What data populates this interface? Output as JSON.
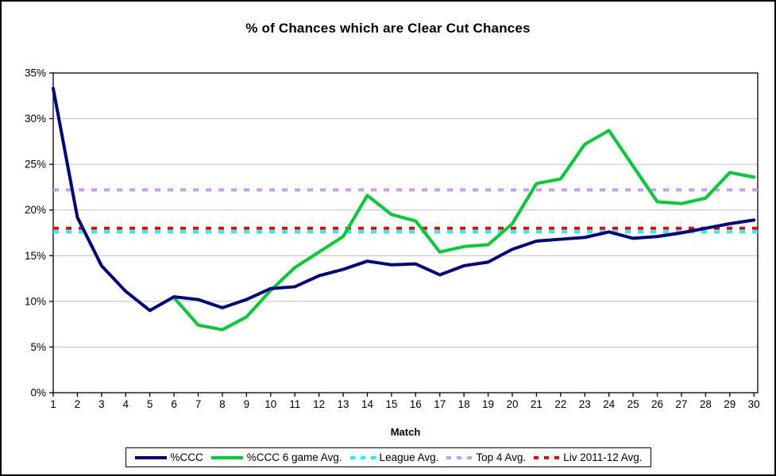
{
  "chart_data": {
    "type": "line",
    "title": "% of Chances which are Clear Cut Chances",
    "xlabel": "Match",
    "ylabel": "",
    "ylim": [
      0,
      35
    ],
    "grid": true,
    "legend_position": "bottom",
    "background_color": "#FFFFFF",
    "grid_color": "#C0C0C0",
    "axis_color": "#000000",
    "y_ticks": [
      "0%",
      "5%",
      "10%",
      "15%",
      "20%",
      "25%",
      "30%",
      "35%"
    ],
    "y_tick_values": [
      0,
      5,
      10,
      15,
      20,
      25,
      30,
      35
    ],
    "x_ticks": [
      "1",
      "2",
      "3",
      "4",
      "5",
      "6",
      "7",
      "8",
      "9",
      "10",
      "11",
      "12",
      "13",
      "14",
      "15",
      "16",
      "17",
      "18",
      "19",
      "20",
      "21",
      "22",
      "23",
      "24",
      "25",
      "26",
      "27",
      "28",
      "29",
      "30"
    ],
    "x": [
      1,
      2,
      3,
      4,
      5,
      6,
      7,
      8,
      9,
      10,
      11,
      12,
      13,
      14,
      15,
      16,
      17,
      18,
      19,
      20,
      21,
      22,
      23,
      24,
      25,
      26,
      27,
      28,
      29,
      30
    ],
    "series": [
      {
        "name": "%CCC",
        "color": "#000080",
        "style": "solid",
        "values": [
          33.3,
          19.2,
          13.9,
          11.1,
          9.0,
          10.5,
          10.2,
          9.3,
          10.2,
          11.4,
          11.6,
          12.8,
          13.5,
          14.4,
          14.0,
          14.1,
          12.9,
          13.9,
          14.3,
          15.7,
          16.6,
          16.8,
          17.0,
          17.6,
          16.9,
          17.1,
          17.5,
          18.0,
          18.5,
          18.9
        ]
      },
      {
        "name": "%CCC 6 game Avg.",
        "color": "#00CC33",
        "style": "solid",
        "values": [
          null,
          null,
          null,
          null,
          null,
          10.4,
          7.4,
          6.9,
          8.3,
          11.2,
          13.7,
          15.4,
          17.1,
          21.6,
          19.5,
          18.8,
          15.4,
          16.0,
          16.2,
          18.5,
          22.9,
          23.4,
          27.2,
          28.7,
          24.8,
          20.9,
          20.7,
          21.3,
          24.1,
          23.6
        ]
      },
      {
        "name": "League Avg.",
        "color": "#00FFFF",
        "style": "dashed",
        "constant": 17.6
      },
      {
        "name": "Top 4 Avg.",
        "color": "#CC99FF",
        "style": "dashed",
        "constant": 22.2
      },
      {
        "name": "Liv 2011-12 Avg.",
        "color": "#FF0000",
        "style": "dashed",
        "constant": 18.0
      }
    ]
  }
}
